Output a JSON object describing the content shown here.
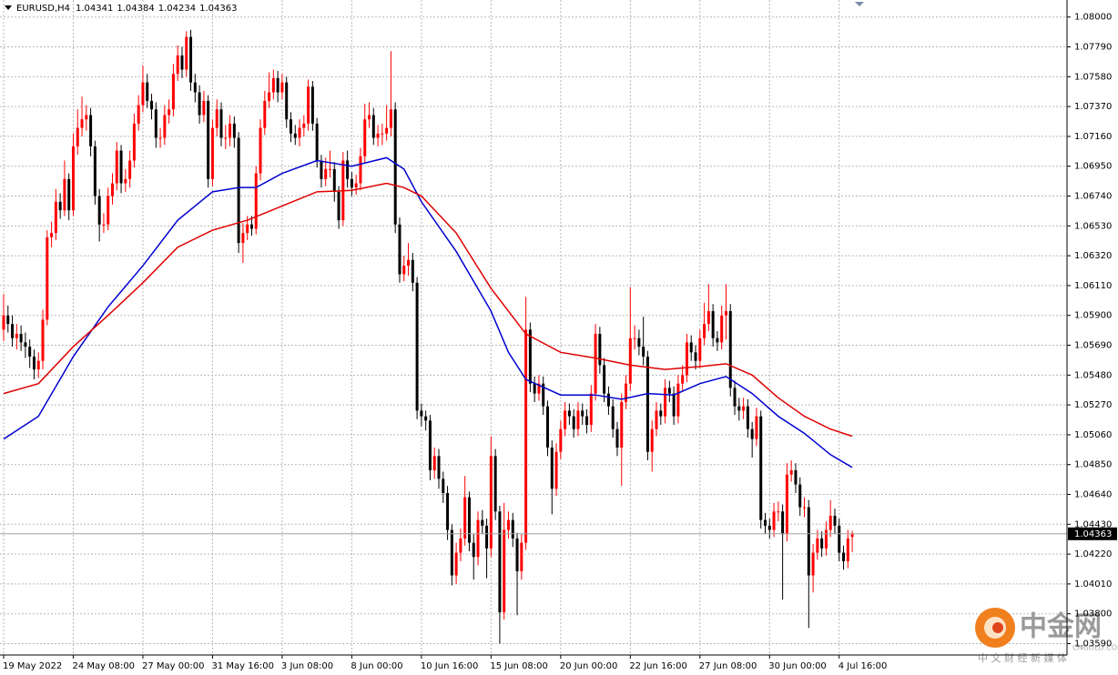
{
  "chart_data": {
    "type": "candlestick",
    "title": "EURUSD,H4",
    "categories": [
      "19 May 2022",
      null,
      null,
      null,
      null,
      null,
      null,
      null,
      null,
      null,
      null,
      null,
      null,
      null,
      null,
      null,
      "24 May 08:00",
      null,
      null,
      null,
      null,
      null,
      null,
      null,
      null,
      null,
      null,
      null,
      null,
      null,
      null,
      null,
      "27 May 00:00",
      null,
      null,
      null,
      null,
      null,
      null,
      null,
      null,
      null,
      null,
      null,
      null,
      null,
      null,
      null,
      "31 May 16:00",
      null,
      null,
      null,
      null,
      null,
      null,
      null,
      null,
      null,
      null,
      null,
      null,
      null,
      null,
      null,
      "3 Jun 08:00",
      null,
      null,
      null,
      null,
      null,
      null,
      null,
      null,
      null,
      null,
      null,
      null,
      null,
      null,
      null,
      "8 Jun 00:00",
      null,
      null,
      null,
      null,
      null,
      null,
      null,
      null,
      null,
      null,
      null,
      null,
      null,
      null,
      null,
      "10 Jun 16:00",
      null,
      null,
      null,
      null,
      null,
      null,
      null,
      null,
      null,
      null,
      null,
      null,
      null,
      null,
      null,
      "15 Jun 08:00",
      null,
      null,
      null,
      null,
      null,
      null,
      null,
      null,
      null,
      null,
      null,
      null,
      null,
      null,
      null,
      "20 Jun 00:00",
      null,
      null,
      null,
      null,
      null,
      null,
      null,
      null,
      null,
      null,
      null,
      null,
      null,
      null,
      null,
      "22 Jun 16:00",
      null,
      null,
      null,
      null,
      null,
      null,
      null,
      null,
      null,
      null,
      null,
      null,
      null,
      null,
      null,
      "27 Jun 08:00",
      null,
      null,
      null,
      null,
      null,
      null,
      null,
      null,
      null,
      null,
      null,
      null,
      null,
      null,
      null,
      "30 Jun 00:00",
      null,
      null,
      null,
      null,
      null,
      null,
      null,
      null,
      null,
      null,
      null,
      null,
      null,
      null,
      null,
      "4 Jul 16:00",
      null,
      null,
      null
    ],
    "open": [
      1.058,
      1.059,
      1.0584,
      1.0574,
      1.0577,
      1.0571,
      1.0568,
      1.0561,
      1.0552,
      1.0558,
      1.0587,
      1.0645,
      1.0648,
      1.067,
      1.0664,
      1.0686,
      1.0664,
      1.0709,
      1.0722,
      1.0728,
      1.0731,
      1.0709,
      1.0674,
      1.0654,
      1.0654,
      1.0674,
      1.0683,
      1.0706,
      1.0683,
      1.0686,
      1.0699,
      1.0725,
      1.0738,
      1.0754,
      1.0741,
      1.0735,
      1.0715,
      1.0715,
      1.0731,
      1.0735,
      1.076,
      1.0773,
      1.0763,
      1.0786,
      1.0754,
      1.0747,
      1.0731,
      1.0741,
      1.0686,
      1.0722,
      1.0735,
      1.0715,
      1.0715,
      1.0725,
      1.0715,
      1.0641,
      1.0648,
      1.0654,
      1.0651,
      1.069,
      1.0722,
      1.0741,
      1.0747,
      1.0757,
      1.0747,
      1.0754,
      1.0728,
      1.0718,
      1.0715,
      1.0722,
      1.0725,
      1.0751,
      1.0725,
      1.0699,
      1.0686,
      1.0693,
      1.0693,
      1.0677,
      1.0657,
      1.0699,
      1.0686,
      1.068,
      1.0683,
      1.0702,
      1.0728,
      1.0731,
      1.0715,
      1.0718,
      1.0718,
      1.0722,
      1.0735,
      1.0654,
      1.0619,
      1.0625,
      1.0629,
      1.0613,
      1.0523,
      1.0519,
      1.0516,
      1.0481,
      1.0491,
      1.0475,
      1.0465,
      1.0439,
      1.0407,
      1.0423,
      1.0433,
      1.0462,
      1.043,
      1.042,
      1.0446,
      1.0442,
      1.0426,
      1.0491,
      1.0452,
      1.0381,
      1.0439,
      1.0446,
      1.0433,
      1.041,
      1.043,
      1.058,
      1.0542,
      1.0535,
      1.0542,
      1.0526,
      1.0497,
      1.0468,
      1.0494,
      1.051,
      1.0523,
      1.0519,
      1.051,
      1.0523,
      1.0519,
      1.0513,
      1.0535,
      1.0577,
      1.0555,
      1.0535,
      1.0526,
      1.051,
      1.0497,
      1.0529,
      1.0542,
      1.0574,
      1.0574,
      1.0568,
      1.0561,
      1.0494,
      1.051,
      1.0523,
      1.0519,
      1.0539,
      1.0535,
      1.0519,
      1.0542,
      1.0548,
      1.0571,
      1.0564,
      1.0558,
      1.0574,
      1.0584,
      1.0593,
      1.0574,
      1.0571,
      1.059,
      1.0593,
      1.0539,
      1.0526,
      1.0523,
      1.0526,
      1.051,
      1.0503,
      1.0519,
      1.0446,
      1.0442,
      1.0439,
      1.0452,
      1.0452,
      1.0436,
      1.0478,
      1.0481,
      1.0471,
      1.0455,
      1.0455,
      1.0407,
      1.0423,
      1.0433,
      1.0426,
      1.0439,
      1.0449,
      1.0442,
      1.0423,
      1.0417,
      1.04341
    ],
    "high": [
      1.0605,
      1.0597,
      1.059,
      1.0584,
      1.0583,
      1.0578,
      1.0573,
      1.0566,
      1.0564,
      1.0594,
      1.065,
      1.0656,
      1.0679,
      1.0676,
      1.0699,
      1.069,
      1.0718,
      1.0735,
      1.0744,
      1.0738,
      1.0736,
      1.0713,
      1.0679,
      1.0662,
      1.068,
      1.069,
      1.0712,
      1.071,
      1.0693,
      1.0706,
      1.0732,
      1.0745,
      1.0766,
      1.076,
      1.0746,
      1.074,
      1.0722,
      1.0738,
      1.0742,
      1.0767,
      1.078,
      1.0779,
      1.079,
      1.0791,
      1.076,
      1.0752,
      1.0748,
      1.0745,
      1.0728,
      1.0742,
      1.074,
      1.0724,
      1.0731,
      1.073,
      1.0719,
      1.0655,
      1.066,
      1.066,
      1.0695,
      1.0728,
      1.0748,
      1.0761,
      1.0763,
      1.0762,
      1.076,
      1.0758,
      1.0733,
      1.0724,
      1.0728,
      1.0731,
      1.0756,
      1.0755,
      1.0729,
      1.0703,
      1.0701,
      1.0706,
      1.0698,
      1.0681,
      1.0705,
      1.0706,
      1.0691,
      1.0689,
      1.0708,
      1.0739,
      1.074,
      1.0736,
      1.0724,
      1.0725,
      1.0738,
      1.0776,
      1.074,
      1.0659,
      1.0632,
      1.0641,
      1.0634,
      1.0617,
      1.0528,
      1.0523,
      1.052,
      1.0497,
      1.0496,
      1.048,
      1.047,
      1.0443,
      1.043,
      1.044,
      1.0477,
      1.0466,
      1.0436,
      1.0452,
      1.0453,
      1.0447,
      1.0505,
      1.0496,
      1.0456,
      1.0458,
      1.0452,
      1.0451,
      1.0437,
      1.0436,
      1.0603,
      1.0585,
      1.0547,
      1.0548,
      1.0547,
      1.053,
      1.0502,
      1.05,
      1.0516,
      1.0529,
      1.0528,
      1.0524,
      1.0529,
      1.0528,
      1.0524,
      1.0541,
      1.0584,
      1.0582,
      1.056,
      1.054,
      1.0531,
      1.0515,
      1.0535,
      1.0548,
      1.061,
      1.0583,
      1.058,
      1.0589,
      1.0565,
      1.0516,
      1.0529,
      1.0528,
      1.0545,
      1.0544,
      1.054,
      1.0548,
      1.0555,
      1.0577,
      1.0576,
      1.0569,
      1.058,
      1.0599,
      1.0612,
      1.0598,
      1.0579,
      1.0597,
      1.0612,
      1.0598,
      1.0544,
      1.0532,
      1.0532,
      1.0531,
      1.0515,
      1.0525,
      1.0523,
      1.0451,
      1.0447,
      1.0458,
      1.0459,
      1.0457,
      1.0486,
      1.0488,
      1.0486,
      1.0476,
      1.0462,
      1.046,
      1.0429,
      1.0439,
      1.0438,
      1.0445,
      1.046,
      1.0454,
      1.0447,
      1.0428,
      1.0439,
      1.04384
    ],
    "low": [
      1.0572,
      1.0578,
      1.0568,
      1.0566,
      1.0565,
      1.056,
      1.0553,
      1.0545,
      1.0546,
      1.0552,
      1.0583,
      1.0638,
      1.0643,
      1.0658,
      1.066,
      1.0657,
      1.066,
      1.0703,
      1.0716,
      1.072,
      1.0702,
      1.0668,
      1.0642,
      1.0648,
      1.065,
      1.0668,
      1.0678,
      1.0676,
      1.0677,
      1.068,
      1.0694,
      1.072,
      1.0733,
      1.0736,
      1.0728,
      1.0708,
      1.0708,
      1.071,
      1.0725,
      1.073,
      1.0755,
      1.0757,
      1.0758,
      1.0748,
      1.074,
      1.0725,
      1.0726,
      1.068,
      1.0681,
      1.0716,
      1.0709,
      1.0707,
      1.0709,
      1.0708,
      1.0634,
      1.0627,
      1.0643,
      1.0646,
      1.0647,
      1.0685,
      1.0717,
      1.0736,
      1.0742,
      1.074,
      1.0742,
      1.0722,
      1.0712,
      1.071,
      1.0709,
      1.0716,
      1.072,
      1.072,
      1.0694,
      1.068,
      1.0681,
      1.0687,
      1.067,
      1.0651,
      1.0653,
      1.068,
      1.0674,
      1.0675,
      1.0678,
      1.0697,
      1.0722,
      1.071,
      1.0709,
      1.071,
      1.0713,
      1.0716,
      1.0648,
      1.0613,
      1.0614,
      1.0618,
      1.0607,
      1.0517,
      1.0512,
      1.0509,
      1.0474,
      1.0475,
      1.0468,
      1.0458,
      1.0432,
      1.04,
      1.0401,
      1.0417,
      1.0428,
      1.0424,
      1.0404,
      1.0414,
      1.0436,
      1.0405,
      1.042,
      1.0446,
      1.0359,
      1.0376,
      1.0433,
      1.0427,
      1.0379,
      1.0404,
      1.0425,
      1.0536,
      1.0529,
      1.053,
      1.052,
      1.0491,
      1.045,
      1.0463,
      1.0489,
      1.0505,
      1.0513,
      1.0504,
      1.0505,
      1.0513,
      1.0507,
      1.0508,
      1.053,
      1.0549,
      1.0529,
      1.052,
      1.0504,
      1.0491,
      1.047,
      1.0524,
      1.0537,
      1.0566,
      1.0562,
      1.0555,
      1.0488,
      1.048,
      1.0505,
      1.0513,
      1.0514,
      1.0529,
      1.0513,
      1.0514,
      1.0537,
      1.0543,
      1.0558,
      1.0552,
      1.0553,
      1.0569,
      1.0579,
      1.0568,
      1.0565,
      1.0566,
      1.0573,
      1.0533,
      1.052,
      1.0516,
      1.0517,
      1.0504,
      1.049,
      1.0498,
      1.044,
      1.0436,
      1.0433,
      1.0434,
      1.0445,
      1.039,
      1.0431,
      1.0473,
      1.0465,
      1.0449,
      1.0448,
      1.037,
      1.0395,
      1.0418,
      1.042,
      1.0421,
      1.0434,
      1.0436,
      1.0417,
      1.0411,
      1.0412,
      1.04234
    ],
    "close": [
      1.059,
      1.0584,
      1.0574,
      1.0577,
      1.0571,
      1.0568,
      1.0561,
      1.0552,
      1.0558,
      1.0587,
      1.0645,
      1.0648,
      1.067,
      1.0664,
      1.0686,
      1.0664,
      1.0709,
      1.0722,
      1.0728,
      1.0731,
      1.0709,
      1.0674,
      1.0654,
      1.0654,
      1.0674,
      1.0683,
      1.0706,
      1.0683,
      1.0686,
      1.0699,
      1.0725,
      1.0738,
      1.0754,
      1.0741,
      1.0735,
      1.0715,
      1.0715,
      1.0731,
      1.0735,
      1.076,
      1.0773,
      1.0763,
      1.0786,
      1.0754,
      1.0747,
      1.0731,
      1.0741,
      1.0686,
      1.0722,
      1.0735,
      1.0715,
      1.0715,
      1.0725,
      1.0715,
      1.0641,
      1.0648,
      1.0654,
      1.0651,
      1.069,
      1.0722,
      1.0741,
      1.0747,
      1.0757,
      1.0747,
      1.0754,
      1.0728,
      1.0718,
      1.0715,
      1.0722,
      1.0725,
      1.0751,
      1.0725,
      1.0699,
      1.0686,
      1.0693,
      1.0693,
      1.0677,
      1.0657,
      1.0699,
      1.0686,
      1.068,
      1.0683,
      1.0702,
      1.0728,
      1.0731,
      1.0715,
      1.0718,
      1.0718,
      1.0722,
      1.0735,
      1.0654,
      1.0619,
      1.0625,
      1.0629,
      1.0613,
      1.0523,
      1.0519,
      1.0516,
      1.0481,
      1.0491,
      1.0475,
      1.0465,
      1.0439,
      1.0407,
      1.0423,
      1.0433,
      1.0462,
      1.043,
      1.042,
      1.0446,
      1.0442,
      1.0426,
      1.0491,
      1.0452,
      1.0381,
      1.0439,
      1.0446,
      1.0433,
      1.041,
      1.043,
      1.058,
      1.0542,
      1.0535,
      1.0542,
      1.0526,
      1.0497,
      1.0468,
      1.0494,
      1.051,
      1.0523,
      1.0519,
      1.051,
      1.0523,
      1.0519,
      1.0513,
      1.0535,
      1.0577,
      1.0555,
      1.0535,
      1.0526,
      1.051,
      1.0497,
      1.0529,
      1.0542,
      1.0574,
      1.0574,
      1.0568,
      1.0561,
      1.0494,
      1.051,
      1.0523,
      1.0519,
      1.0539,
      1.0535,
      1.0519,
      1.0542,
      1.0548,
      1.0571,
      1.0564,
      1.0558,
      1.0574,
      1.0584,
      1.0593,
      1.0574,
      1.0571,
      1.059,
      1.0593,
      1.0539,
      1.0526,
      1.0523,
      1.0526,
      1.051,
      1.0503,
      1.0519,
      1.0446,
      1.0442,
      1.0439,
      1.0452,
      1.0452,
      1.0436,
      1.0478,
      1.0481,
      1.0471,
      1.0455,
      1.0455,
      1.0407,
      1.0423,
      1.0433,
      1.0426,
      1.0439,
      1.0449,
      1.0442,
      1.0423,
      1.0417,
      1.0433,
      1.04363
    ],
    "up_color": "#ff0000",
    "down_color": "#000000",
    "ma": [
      {
        "color": "#0000d0",
        "x": [
          0,
          8,
          16,
          24,
          32,
          40,
          48,
          54,
          58,
          64,
          72,
          80,
          88,
          92,
          96,
          104,
          112,
          116,
          120,
          128,
          136,
          142,
          148,
          154,
          160,
          166,
          172,
          178,
          184,
          190,
          195
        ],
        "values": [
          1.0503,
          1.0519,
          1.0561,
          1.0596,
          1.0625,
          1.0657,
          1.0677,
          1.068,
          1.068,
          1.069,
          1.0699,
          1.0695,
          1.0701,
          1.0693,
          1.067,
          1.0635,
          1.0593,
          1.0564,
          1.0545,
          1.0534,
          1.0534,
          1.0531,
          1.0535,
          1.0534,
          1.0542,
          1.0547,
          1.0535,
          1.0519,
          1.0507,
          1.0492,
          1.0483
        ]
      },
      {
        "color": "#e00000",
        "x": [
          0,
          8,
          16,
          24,
          32,
          40,
          48,
          56,
          64,
          72,
          80,
          88,
          92,
          96,
          104,
          112,
          120,
          128,
          136,
          144,
          152,
          160,
          166,
          172,
          178,
          184,
          190,
          195
        ],
        "values": [
          1.0535,
          1.0542,
          1.0568,
          1.059,
          1.0613,
          1.0638,
          1.065,
          1.0657,
          1.0667,
          1.0677,
          1.0678,
          1.0683,
          1.068,
          1.0674,
          1.0648,
          1.0609,
          1.0577,
          1.0564,
          1.056,
          1.0555,
          1.0552,
          1.0554,
          1.0556,
          1.0548,
          1.0532,
          1.0519,
          1.051,
          1.0505
        ]
      }
    ],
    "ylim": [
      1.0351,
      1.0812
    ],
    "yticks": [
      {
        "value": 1.08,
        "label": "1.08000"
      },
      {
        "value": 1.0779,
        "label": "1.07790"
      },
      {
        "value": 1.0758,
        "label": "1.07580"
      },
      {
        "value": 1.0737,
        "label": "1.07370"
      },
      {
        "value": 1.0716,
        "label": "1.07160"
      },
      {
        "value": 1.0695,
        "label": "1.06950"
      },
      {
        "value": 1.0674,
        "label": "1.06740"
      },
      {
        "value": 1.0653,
        "label": "1.06530"
      },
      {
        "value": 1.0632,
        "label": "1.06320"
      },
      {
        "value": 1.0611,
        "label": "1.06110"
      },
      {
        "value": 1.059,
        "label": "1.05900"
      },
      {
        "value": 1.0569,
        "label": "1.05690"
      },
      {
        "value": 1.0548,
        "label": "1.05480"
      },
      {
        "value": 1.0527,
        "label": "1.05270"
      },
      {
        "value": 1.0506,
        "label": "1.05060"
      },
      {
        "value": 1.0485,
        "label": "1.04850"
      },
      {
        "value": 1.0464,
        "label": "1.04640"
      },
      {
        "value": 1.0443,
        "label": "1.04430"
      },
      {
        "value": 1.0422,
        "label": "1.04220"
      },
      {
        "value": 1.0401,
        "label": "1.04010"
      },
      {
        "value": 1.038,
        "label": "1.03800"
      },
      {
        "value": 1.0359,
        "label": "1.03590"
      }
    ],
    "grid": true
  },
  "watermark": {
    "brand": "中金网",
    "site": "CNGOLD.COM",
    "tagline": "中 文 财 经 新 媒 体"
  }
}
